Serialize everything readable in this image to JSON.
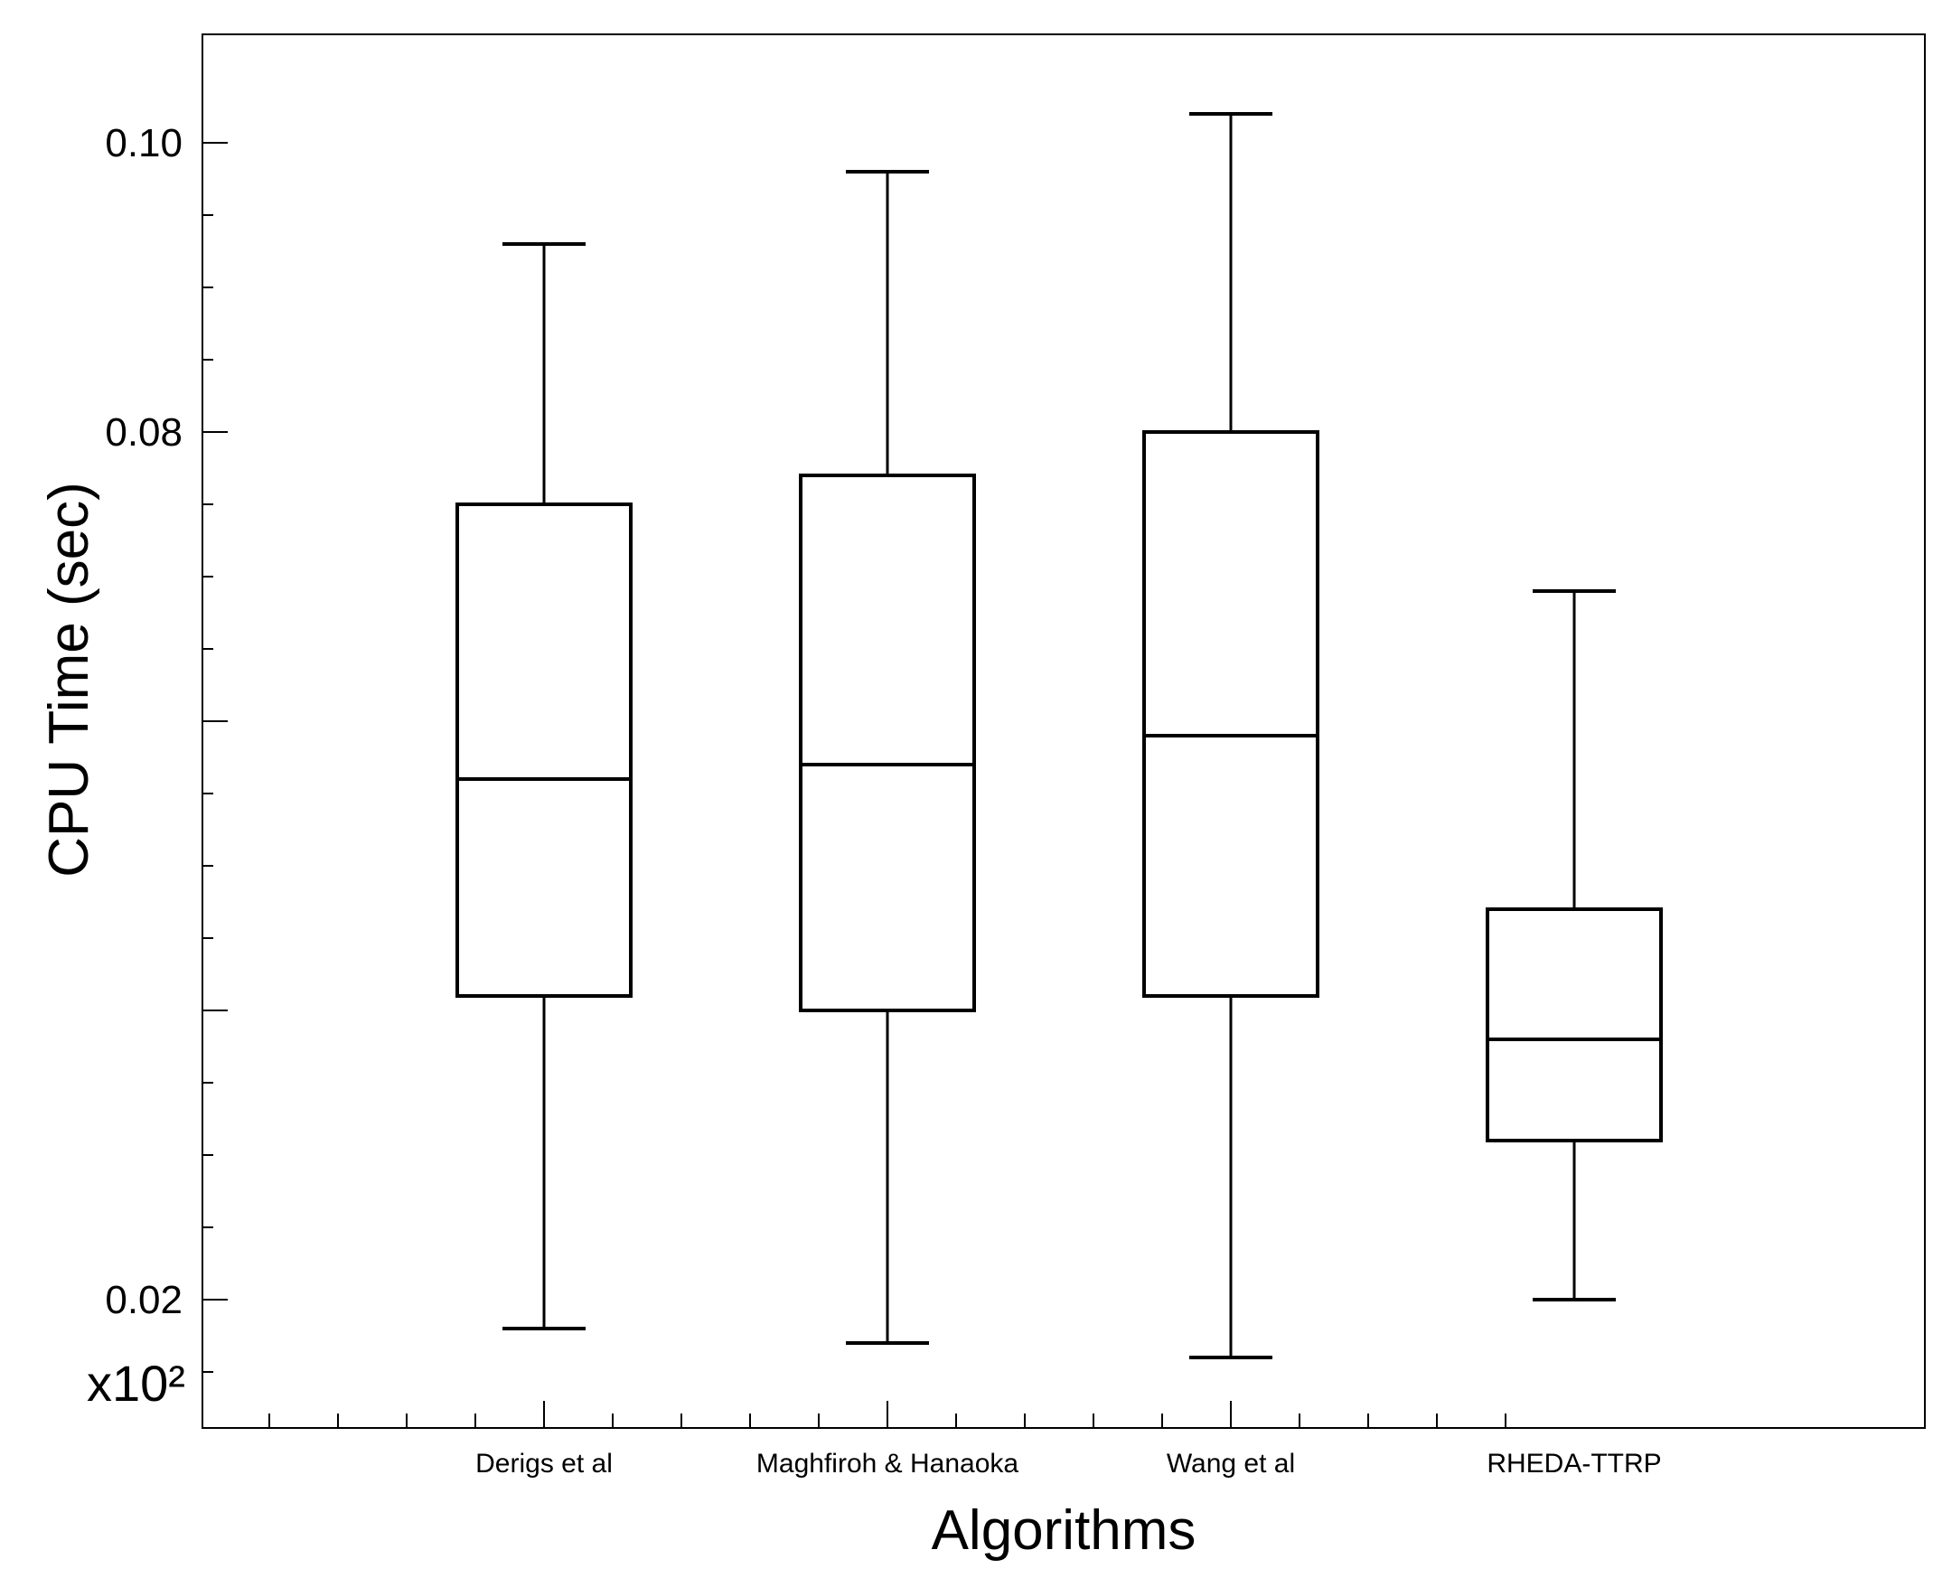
{
  "chart_data": {
    "type": "box",
    "title": "",
    "xlabel": "Algorithms",
    "ylabel": "CPU Time (sec)",
    "y_multiplier_label": "x10²",
    "ylim": [
      0.01,
      0.105
    ],
    "y_ticks": [
      {
        "value": 0.1,
        "label": "0.10"
      },
      {
        "value": 0.08,
        "label": "0.08"
      },
      {
        "value": 0.06,
        "label": ""
      },
      {
        "value": 0.04,
        "label": ""
      },
      {
        "value": 0.02,
        "label": "0.02"
      }
    ],
    "grid": false,
    "categories": [
      "Derigs et al",
      "Maghfiroh & Hanaoka",
      "Wang et al",
      "RHEDA-TTRP"
    ],
    "boxes": [
      {
        "category": "Derigs et al",
        "min": 0.018,
        "q1": 0.041,
        "median": 0.056,
        "q3": 0.075,
        "max": 0.093
      },
      {
        "category": "Maghfiroh & Hanaoka",
        "min": 0.017,
        "q1": 0.04,
        "median": 0.057,
        "q3": 0.077,
        "max": 0.098
      },
      {
        "category": "Wang et al",
        "min": 0.016,
        "q1": 0.041,
        "median": 0.059,
        "q3": 0.08,
        "max": 0.102
      },
      {
        "category": "RHEDA-TTRP",
        "min": 0.02,
        "q1": 0.031,
        "median": 0.038,
        "q3": 0.047,
        "max": 0.069
      }
    ]
  }
}
